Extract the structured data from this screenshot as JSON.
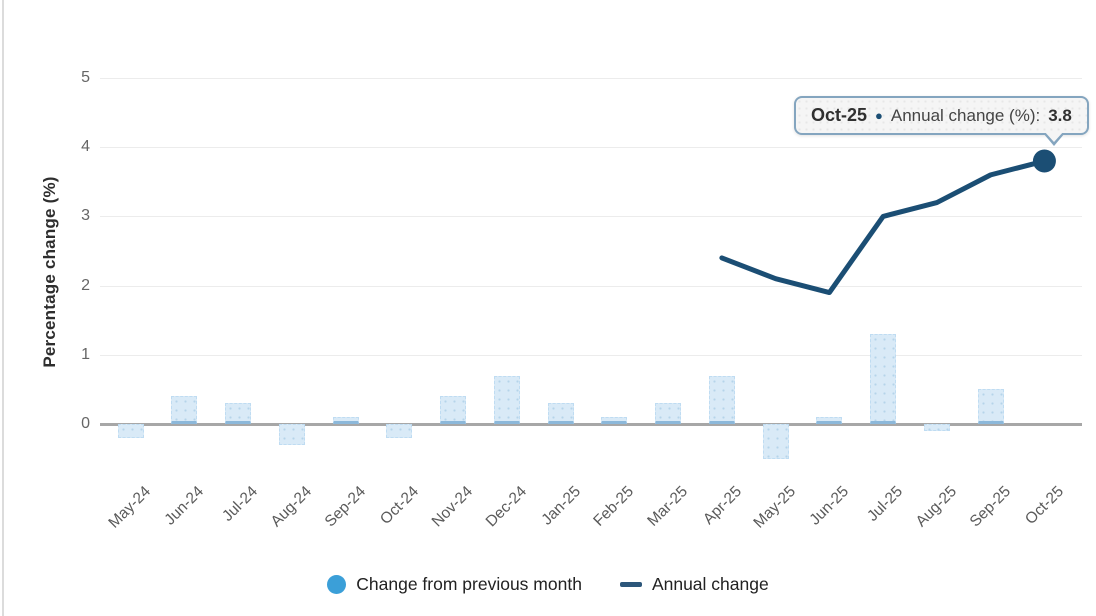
{
  "chart_data": {
    "type": "bar+line",
    "title": "",
    "categories": [
      "May-24",
      "Jun-24",
      "Jul-24",
      "Aug-24",
      "Sep-24",
      "Oct-24",
      "Nov-24",
      "Dec-24",
      "Jan-25",
      "Feb-25",
      "Mar-25",
      "Apr-25",
      "May-25",
      "Jun-25",
      "Jul-25",
      "Aug-25",
      "Sep-25",
      "Oct-25"
    ],
    "series": [
      {
        "name": "Change from previous month",
        "type": "bar",
        "values": [
          -0.2,
          0.4,
          0.3,
          -0.3,
          0.1,
          -0.2,
          0.4,
          0.7,
          0.3,
          0.1,
          0.3,
          0.7,
          -0.5,
          0.1,
          1.3,
          -0.1,
          0.5,
          0
        ]
      },
      {
        "name": "Annual change",
        "type": "line",
        "values": [
          null,
          null,
          null,
          null,
          null,
          null,
          null,
          null,
          null,
          null,
          null,
          2.4,
          2.1,
          1.9,
          3.0,
          3.2,
          3.6,
          3.8
        ]
      }
    ],
    "xlabel": "",
    "ylabel": "Percentage change (%)",
    "ylim": [
      0,
      5
    ],
    "yticks": [
      0,
      1,
      2,
      3,
      4,
      5
    ],
    "grid": true,
    "legend_position": "bottom"
  },
  "tooltip": {
    "category": "Oct-25",
    "bullet": "●",
    "series_label": "Annual change (%):",
    "value": "3.8"
  },
  "legend": {
    "items": [
      {
        "label": "Change from previous month",
        "marker": "circle",
        "color": "#3b9fd8"
      },
      {
        "label": "Annual change",
        "marker": "line",
        "color": "#2c567a"
      }
    ]
  },
  "colors": {
    "bar_fill": "#d9eaf7",
    "bar_dots": "#b5d4ea",
    "bar_base_edge": "#8cb8da",
    "line": "#1b4e74",
    "point": "#1b4e74",
    "zero_line": "#a7a7a7",
    "gridline": "#ececec",
    "tick_text": "#666666",
    "tooltip_border": "#84a5bf",
    "tooltip_bg": "#f5f5f5"
  }
}
